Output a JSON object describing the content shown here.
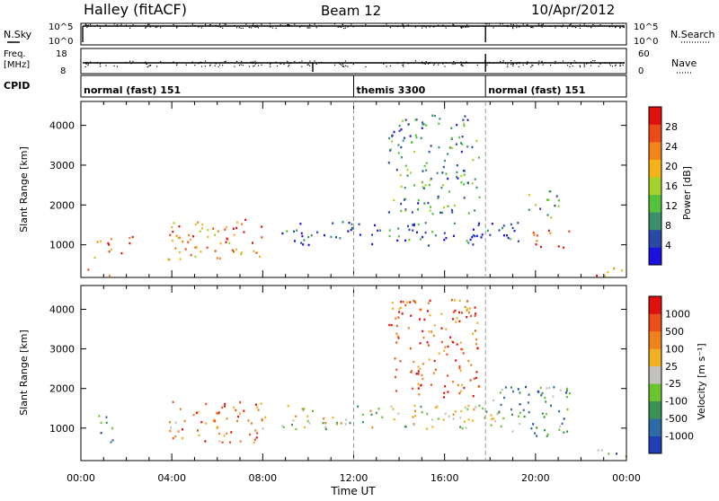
{
  "header": {
    "site": "Halley (fitACF)",
    "beam": "Beam 12",
    "date": "10/Apr/2012"
  },
  "top_panels": {
    "nsky_label": "N.Sky",
    "nsearch_label": "N.Search",
    "freq_label": "Freq.",
    "freq_unit": "[MHz]",
    "nave_label": "Nave",
    "cpid_label": "CPID",
    "nsky_ticks": [
      "10^5",
      "10^0"
    ],
    "nsearch_ticks": [
      "10^5",
      "10^0"
    ],
    "freq_ticks": [
      "18",
      "8"
    ],
    "nave_ticks": [
      "60",
      "0"
    ]
  },
  "cpid": [
    {
      "label": "normal (fast) 151",
      "start": 0,
      "end": 12
    },
    {
      "label": "themis 3300",
      "start": 12,
      "end": 17.8
    },
    {
      "label": "normal (fast) 151",
      "start": 17.8,
      "end": 24
    }
  ],
  "time_axis": {
    "label": "Time UT",
    "ticks": [
      "00:00",
      "04:00",
      "08:00",
      "12:00",
      "16:00",
      "20:00",
      "00:00"
    ],
    "range": [
      0,
      24
    ]
  },
  "chart_data": [
    {
      "type": "heatmap",
      "title": "",
      "xlabel": "",
      "ylabel": "Slant Range [km]",
      "xlim": [
        0,
        24
      ],
      "ylim": [
        180,
        4600
      ],
      "yticks": [
        "1000",
        "2000",
        "3000",
        "4000"
      ],
      "colorbar": {
        "label": "Power [dB]",
        "ticks": [
          "4",
          "8",
          "12",
          "16",
          "20",
          "24",
          "28"
        ],
        "colors": [
          "#1a10e0",
          "#2849a8",
          "#39906b",
          "#54c23c",
          "#a6d32a",
          "#f4b417",
          "#f4831a",
          "#ee4a17",
          "#e0100f"
        ]
      },
      "regions": [
        {
          "t0": 0.5,
          "t1": 1.4,
          "r0": 650,
          "r1": 1350,
          "level": 0.7
        },
        {
          "t0": 1.6,
          "t1": 2.3,
          "r0": 800,
          "r1": 1300,
          "level": 0.75
        },
        {
          "t0": 3.8,
          "t1": 8.2,
          "r0": 650,
          "r1": 1700,
          "level": 0.75
        },
        {
          "t0": 0.2,
          "t1": 1.4,
          "r0": 250,
          "r1": 420,
          "level": 0.95
        },
        {
          "t0": 8.8,
          "t1": 19.5,
          "r0": 1000,
          "r1": 1600,
          "level": 0.15
        },
        {
          "t0": 13.5,
          "t1": 17.5,
          "r0": 1800,
          "r1": 4300,
          "level": 0.3
        },
        {
          "t0": 19.5,
          "t1": 21.0,
          "r0": 1700,
          "r1": 2400,
          "level": 0.35
        },
        {
          "t0": 19.8,
          "t1": 21.5,
          "r0": 900,
          "r1": 1400,
          "level": 0.85
        },
        {
          "t0": 22.5,
          "t1": 24.0,
          "r0": 250,
          "r1": 500,
          "level": 0.8
        }
      ]
    },
    {
      "type": "heatmap",
      "title": "",
      "xlabel": "Time UT",
      "ylabel": "Slant Range [km]",
      "xlim": [
        0,
        24
      ],
      "ylim": [
        180,
        4600
      ],
      "yticks": [
        "1000",
        "2000",
        "3000",
        "4000"
      ],
      "colorbar": {
        "label": "Velocity [m s⁻¹]",
        "ticks": [
          "1000",
          "500",
          "100",
          "25",
          "-25",
          "-100",
          "-500",
          "-1000"
        ],
        "colors": [
          "#1f3fb5",
          "#2c6aa8",
          "#3a9254",
          "#6cc431",
          "#c4c2be",
          "#f0b022",
          "#f0821c",
          "#ea5018",
          "#e0100f"
        ]
      },
      "regions": [
        {
          "t0": 0.5,
          "t1": 1.4,
          "r0": 650,
          "r1": 1350,
          "level": 0.25
        },
        {
          "t0": 3.8,
          "t1": 8.2,
          "r0": 650,
          "r1": 1700,
          "level": 0.75
        },
        {
          "t0": 8.8,
          "t1": 19.5,
          "r0": 1000,
          "r1": 1600,
          "level": 0.5
        },
        {
          "t0": 13.5,
          "t1": 17.5,
          "r0": 1800,
          "r1": 4300,
          "level": 0.8
        },
        {
          "t0": 18.0,
          "t1": 21.5,
          "r0": 800,
          "r1": 2100,
          "level": 0.3
        },
        {
          "t0": 22.5,
          "t1": 24.0,
          "r0": 250,
          "r1": 500,
          "level": 0.3
        }
      ]
    }
  ]
}
